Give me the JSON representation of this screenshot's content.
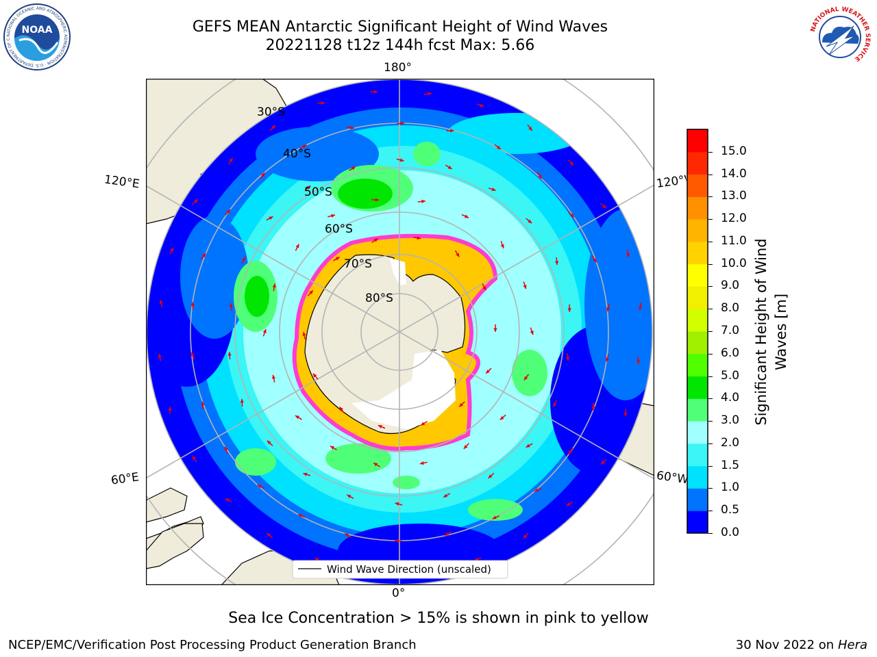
{
  "header": {
    "title_line1": "GEFS MEAN Antarctic Significant Height of Wind Waves",
    "title_line2": "20221128 t12z 144h fcst   Max: 5.66"
  },
  "logos": {
    "noaa": {
      "text": "NOAA",
      "ring_text": "NATIONAL OCEANIC AND ATMOSPHERIC ADMINISTRATION · U.S. DEPARTMENT OF COMMERCE"
    },
    "nws": {
      "ring_text": "NATIONAL WEATHER SERVICE"
    }
  },
  "map": {
    "projection": "south-polar-stereographic",
    "longitude_labels": {
      "top": "180°",
      "bottom": "0°",
      "left_upper": "120°E",
      "left_lower": "60°E",
      "right_upper": "120°W",
      "right_lower": "60°W"
    },
    "latitude_labels": [
      "30°S",
      "40°S",
      "50°S",
      "60°S",
      "70°S",
      "80°S"
    ],
    "legend_label": "Wind Wave Direction (unscaled)",
    "arrow_color": "#e8000b",
    "land_color": "#efecdc",
    "ice_color_range": [
      "#ff3ccf",
      "#ffc800"
    ]
  },
  "colorbar": {
    "label_line1": "Significant Height of Wind",
    "label_line2": "Waves [m]",
    "ticks": [
      "0.0",
      "0.5",
      "1.0",
      "1.5",
      "2.0",
      "3.0",
      "4.0",
      "5.0",
      "6.0",
      "7.0",
      "8.0",
      "9.0",
      "10.0",
      "11.0",
      "12.0",
      "13.0",
      "14.0",
      "15.0"
    ],
    "colors": [
      "#0000ff",
      "#0073ff",
      "#00e0ff",
      "#3cf5f5",
      "#a0ffff",
      "#50ff78",
      "#00e600",
      "#50ff00",
      "#a0f000",
      "#d2ff00",
      "#f0f000",
      "#ffff00",
      "#ffd200",
      "#ffb400",
      "#ff9000",
      "#ff5a00",
      "#ff2800",
      "#ff0000"
    ]
  },
  "footer": {
    "caption": "Sea Ice Concentration > 15% is shown in pink to yellow",
    "left": "NCEP/EMC/Verification Post Processing Product Generation Branch",
    "right_date": "30 Nov 2022 on",
    "right_host": "Hera"
  }
}
